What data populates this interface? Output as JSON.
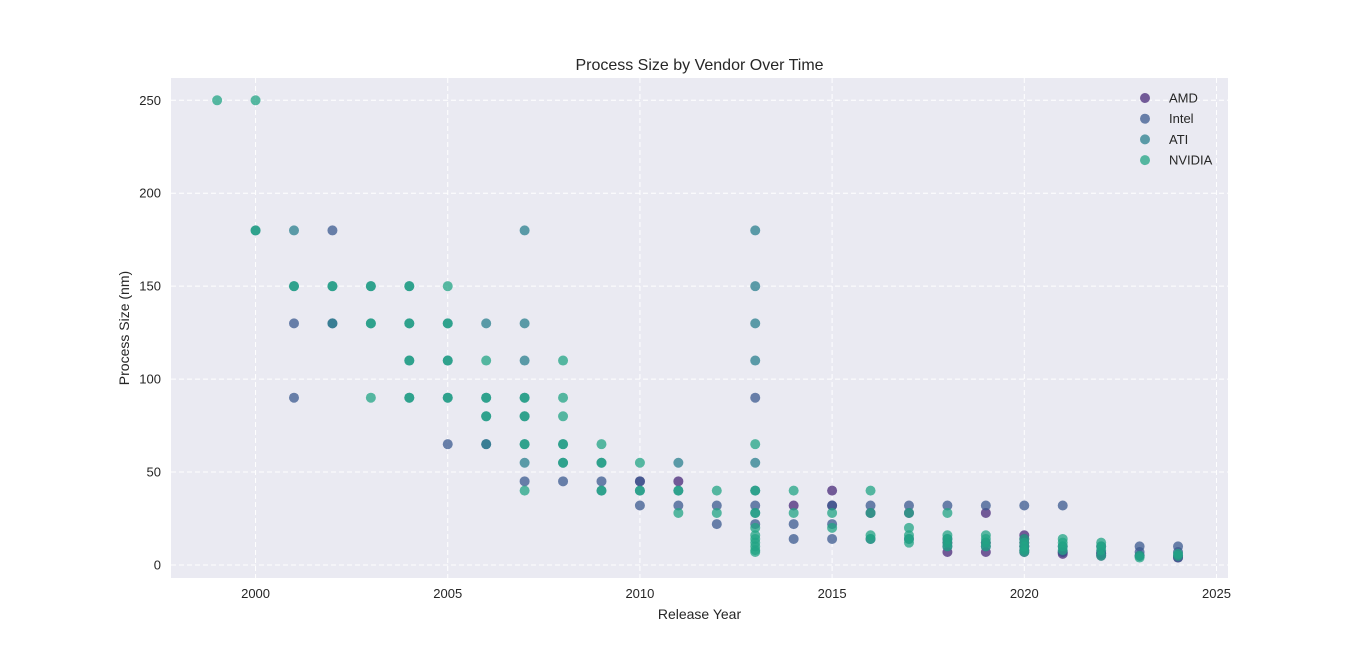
{
  "chart_data": {
    "type": "scatter",
    "title": "Process Size by Vendor Over Time",
    "xlabel": "Release Year",
    "ylabel": "Process Size (nm)",
    "xlim": [
      1997.8,
      2025.3
    ],
    "ylim": [
      -7,
      262
    ],
    "x_ticks": [
      2000,
      2005,
      2010,
      2015,
      2020,
      2025
    ],
    "y_ticks": [
      0,
      50,
      100,
      150,
      200,
      250
    ],
    "grid": true,
    "legend_position": "top-right",
    "series": [
      {
        "name": "AMD",
        "color": "#482878",
        "points": [
          [
            2010,
            45
          ],
          [
            2011,
            45
          ],
          [
            2014,
            32
          ],
          [
            2015,
            40
          ],
          [
            2015,
            32
          ],
          [
            2016,
            28
          ],
          [
            2017,
            28
          ],
          [
            2018,
            12
          ],
          [
            2018,
            7
          ],
          [
            2019,
            28
          ],
          [
            2019,
            12
          ],
          [
            2019,
            7
          ],
          [
            2020,
            16
          ],
          [
            2020,
            14
          ],
          [
            2020,
            12
          ],
          [
            2020,
            10
          ],
          [
            2020,
            8
          ],
          [
            2020,
            7
          ],
          [
            2021,
            7
          ],
          [
            2021,
            6
          ],
          [
            2022,
            6
          ],
          [
            2022,
            5
          ],
          [
            2023,
            5
          ],
          [
            2024,
            5
          ],
          [
            2024,
            4
          ]
        ]
      },
      {
        "name": "Intel",
        "color": "#3b5a8f",
        "points": [
          [
            2001,
            130
          ],
          [
            2001,
            90
          ],
          [
            2002,
            180
          ],
          [
            2002,
            130
          ],
          [
            2005,
            65
          ],
          [
            2006,
            65
          ],
          [
            2007,
            45
          ],
          [
            2008,
            45
          ],
          [
            2009,
            45
          ],
          [
            2010,
            45
          ],
          [
            2010,
            32
          ],
          [
            2011,
            32
          ],
          [
            2012,
            32
          ],
          [
            2012,
            22
          ],
          [
            2013,
            90
          ],
          [
            2013,
            32
          ],
          [
            2013,
            22
          ],
          [
            2014,
            22
          ],
          [
            2014,
            14
          ],
          [
            2015,
            32
          ],
          [
            2015,
            22
          ],
          [
            2015,
            14
          ],
          [
            2016,
            32
          ],
          [
            2016,
            14
          ],
          [
            2017,
            32
          ],
          [
            2017,
            14
          ],
          [
            2018,
            32
          ],
          [
            2018,
            14
          ],
          [
            2018,
            10
          ],
          [
            2019,
            32
          ],
          [
            2019,
            10
          ],
          [
            2020,
            32
          ],
          [
            2020,
            10
          ],
          [
            2021,
            32
          ],
          [
            2021,
            10
          ],
          [
            2021,
            7
          ],
          [
            2022,
            10
          ],
          [
            2022,
            7
          ],
          [
            2022,
            6
          ],
          [
            2023,
            10
          ],
          [
            2023,
            7
          ],
          [
            2023,
            5
          ],
          [
            2024,
            10
          ],
          [
            2024,
            7
          ],
          [
            2024,
            4
          ]
        ]
      },
      {
        "name": "ATI",
        "color": "#2a7f8e",
        "points": [
          [
            2000,
            180
          ],
          [
            2001,
            180
          ],
          [
            2001,
            150
          ],
          [
            2002,
            150
          ],
          [
            2002,
            130
          ],
          [
            2003,
            150
          ],
          [
            2003,
            130
          ],
          [
            2004,
            150
          ],
          [
            2004,
            130
          ],
          [
            2004,
            110
          ],
          [
            2004,
            90
          ],
          [
            2005,
            130
          ],
          [
            2005,
            110
          ],
          [
            2005,
            90
          ],
          [
            2006,
            130
          ],
          [
            2006,
            90
          ],
          [
            2006,
            80
          ],
          [
            2006,
            65
          ],
          [
            2007,
            180
          ],
          [
            2007,
            130
          ],
          [
            2007,
            110
          ],
          [
            2007,
            90
          ],
          [
            2007,
            80
          ],
          [
            2007,
            65
          ],
          [
            2007,
            55
          ],
          [
            2008,
            65
          ],
          [
            2008,
            55
          ],
          [
            2009,
            55
          ],
          [
            2009,
            40
          ],
          [
            2010,
            40
          ],
          [
            2011,
            55
          ],
          [
            2011,
            40
          ],
          [
            2013,
            180
          ],
          [
            2013,
            150
          ],
          [
            2013,
            130
          ],
          [
            2013,
            110
          ],
          [
            2013,
            55
          ],
          [
            2013,
            40
          ],
          [
            2013,
            28
          ]
        ]
      },
      {
        "name": "NVIDIA",
        "color": "#22a484",
        "points": [
          [
            1999,
            250
          ],
          [
            2000,
            250
          ],
          [
            2000,
            180
          ],
          [
            2001,
            150
          ],
          [
            2002,
            150
          ],
          [
            2003,
            150
          ],
          [
            2003,
            130
          ],
          [
            2003,
            90
          ],
          [
            2004,
            150
          ],
          [
            2004,
            130
          ],
          [
            2004,
            110
          ],
          [
            2004,
            90
          ],
          [
            2005,
            150
          ],
          [
            2005,
            130
          ],
          [
            2005,
            110
          ],
          [
            2005,
            90
          ],
          [
            2006,
            110
          ],
          [
            2006,
            90
          ],
          [
            2006,
            80
          ],
          [
            2007,
            90
          ],
          [
            2007,
            80
          ],
          [
            2007,
            65
          ],
          [
            2007,
            40
          ],
          [
            2008,
            110
          ],
          [
            2008,
            90
          ],
          [
            2008,
            80
          ],
          [
            2008,
            65
          ],
          [
            2008,
            55
          ],
          [
            2009,
            65
          ],
          [
            2009,
            55
          ],
          [
            2009,
            40
          ],
          [
            2010,
            55
          ],
          [
            2010,
            40
          ],
          [
            2011,
            40
          ],
          [
            2011,
            28
          ],
          [
            2012,
            40
          ],
          [
            2012,
            28
          ],
          [
            2013,
            65
          ],
          [
            2013,
            40
          ],
          [
            2013,
            28
          ],
          [
            2013,
            20
          ],
          [
            2013,
            16
          ],
          [
            2013,
            14
          ],
          [
            2013,
            12
          ],
          [
            2013,
            10
          ],
          [
            2013,
            8
          ],
          [
            2013,
            7
          ],
          [
            2014,
            40
          ],
          [
            2014,
            28
          ],
          [
            2015,
            28
          ],
          [
            2015,
            20
          ],
          [
            2016,
            40
          ],
          [
            2016,
            28
          ],
          [
            2016,
            16
          ],
          [
            2016,
            14
          ],
          [
            2017,
            28
          ],
          [
            2017,
            20
          ],
          [
            2017,
            16
          ],
          [
            2017,
            14
          ],
          [
            2017,
            12
          ],
          [
            2018,
            28
          ],
          [
            2018,
            16
          ],
          [
            2018,
            14
          ],
          [
            2018,
            12
          ],
          [
            2018,
            10
          ],
          [
            2019,
            16
          ],
          [
            2019,
            14
          ],
          [
            2019,
            12
          ],
          [
            2019,
            10
          ],
          [
            2020,
            14
          ],
          [
            2020,
            12
          ],
          [
            2020,
            10
          ],
          [
            2020,
            8
          ],
          [
            2020,
            7
          ],
          [
            2021,
            14
          ],
          [
            2021,
            12
          ],
          [
            2021,
            10
          ],
          [
            2021,
            8
          ],
          [
            2022,
            12
          ],
          [
            2022,
            10
          ],
          [
            2022,
            8
          ],
          [
            2022,
            5
          ],
          [
            2023,
            5
          ],
          [
            2023,
            4
          ],
          [
            2024,
            6
          ],
          [
            2024,
            5
          ]
        ]
      }
    ]
  }
}
